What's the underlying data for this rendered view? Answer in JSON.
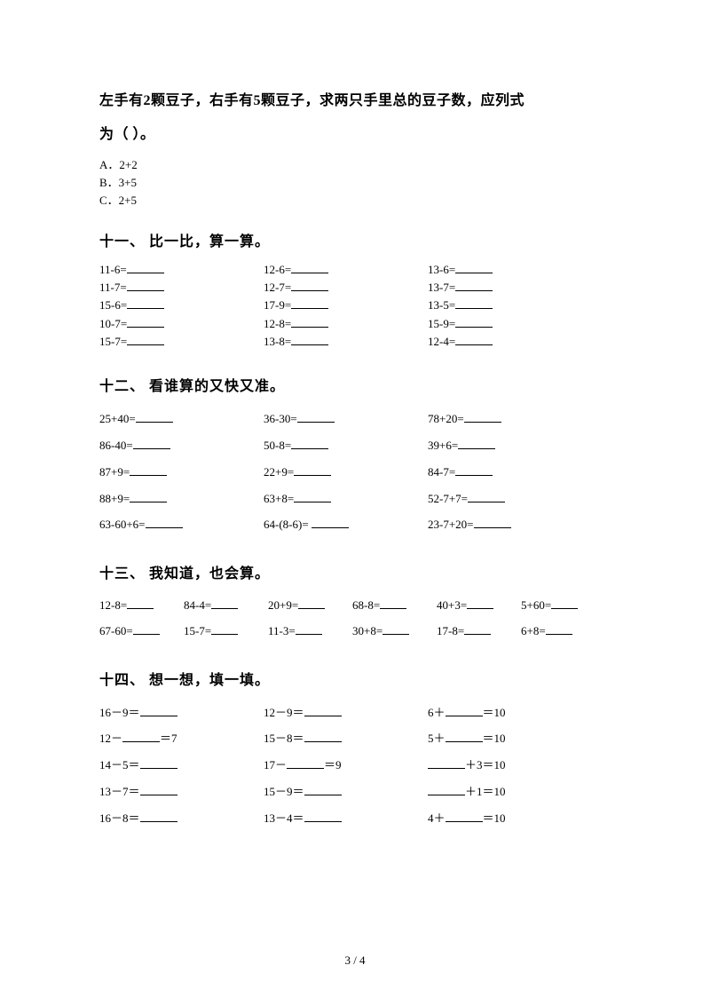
{
  "wordProblem": {
    "line1": "左手有2颗豆子，右手有5颗豆子，求两只手里总的豆子数，应列式",
    "line2": "为（ ）。",
    "optA": "A．2+2",
    "optB": "B．3+5",
    "optC": "C．2+5"
  },
  "s11": {
    "title": "十一、 比一比，算一算。",
    "cells": [
      [
        "11-6=",
        "12-6=",
        "13-6="
      ],
      [
        "11-7=",
        "12-7=",
        "13-7="
      ],
      [
        "15-6=",
        "17-9=",
        "13-5="
      ],
      [
        "10-7=",
        "12-8=",
        "15-9="
      ],
      [
        "15-7=",
        "13-8=",
        "12-4="
      ]
    ]
  },
  "s12": {
    "title": "十二、 看谁算的又快又准。",
    "cells": [
      [
        "25+40=",
        "36-30=",
        "78+20="
      ],
      [
        "86-40=",
        "50-8=",
        "39+6="
      ],
      [
        "87+9=",
        "22+9=",
        "84-7="
      ],
      [
        "88+9=",
        "63+8=",
        "52-7+7="
      ],
      [
        "63-60+6=",
        "64-(8-6)= ",
        "23-7+20="
      ]
    ]
  },
  "s13": {
    "title": "十三、 我知道，也会算。",
    "cells": [
      [
        "12-8=",
        "84-4=",
        "20+9=",
        "68-8=",
        "40+3=",
        "5+60="
      ],
      [
        "67-60=",
        "15-7=",
        "11-3=",
        "30+8=",
        "17-8=",
        "6+8="
      ]
    ]
  },
  "s14": {
    "title": "十四、 想一想，填一填。",
    "rows": [
      [
        {
          "pre": "16－9＝",
          "post": ""
        },
        {
          "pre": "12－9＝",
          "post": ""
        },
        {
          "pre": "6＋",
          "post": "＝10"
        }
      ],
      [
        {
          "pre": "12－",
          "post": "＝7"
        },
        {
          "pre": "15－8＝",
          "post": ""
        },
        {
          "pre": "5＋",
          "post": "＝10"
        }
      ],
      [
        {
          "pre": "14－5＝",
          "post": ""
        },
        {
          "pre": "17－",
          "post": "＝9"
        },
        {
          "pre": "",
          "post": "＋3＝10"
        }
      ],
      [
        {
          "pre": "13－7＝",
          "post": ""
        },
        {
          "pre": "15－9＝",
          "post": ""
        },
        {
          "pre": "",
          "post": "＋1＝10"
        }
      ],
      [
        {
          "pre": "16－8＝",
          "post": ""
        },
        {
          "pre": "13－4＝",
          "post": ""
        },
        {
          "pre": "4＋",
          "post": "＝10"
        }
      ]
    ]
  },
  "footer": "3 / 4"
}
